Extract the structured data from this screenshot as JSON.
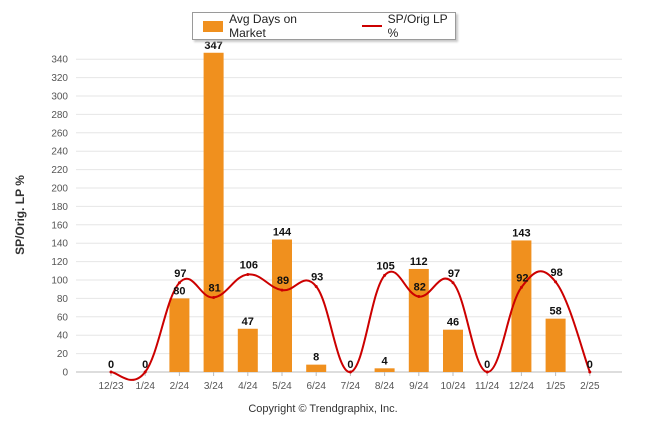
{
  "legend": {
    "bar_label": "Avg Days on Market",
    "line_label": "SP/Orig LP %"
  },
  "copyright": "Copyright © Trendgraphix, Inc.",
  "colors": {
    "bar": "#f0901e",
    "line": "#cc0000",
    "grid": "#e6e6e6",
    "axis_text": "#555555"
  },
  "chart_data": {
    "type": "bar",
    "categories": [
      "12/23",
      "1/24",
      "2/24",
      "3/24",
      "4/24",
      "5/24",
      "6/24",
      "7/24",
      "8/24",
      "9/24",
      "10/24",
      "11/24",
      "12/24",
      "1/25",
      "2/25"
    ],
    "series": [
      {
        "name": "Avg Days on Market",
        "type": "bar",
        "values": [
          0,
          0,
          80,
          347,
          47,
          144,
          8,
          0,
          4,
          112,
          46,
          0,
          143,
          58,
          0
        ]
      },
      {
        "name": "SP/Orig LP %",
        "type": "line",
        "values": [
          0,
          0,
          97,
          81,
          106,
          89,
          93,
          0,
          105,
          82,
          97,
          0,
          92,
          98,
          0
        ]
      }
    ],
    "ylabel": "SP/Orig. LP %",
    "xlabel": "",
    "ylim": [
      0,
      350
    ],
    "yticks": [
      0,
      20,
      40,
      60,
      80,
      100,
      120,
      140,
      160,
      180,
      200,
      220,
      240,
      260,
      280,
      300,
      320,
      340
    ],
    "grid": true,
    "legend_position": "top-center"
  }
}
